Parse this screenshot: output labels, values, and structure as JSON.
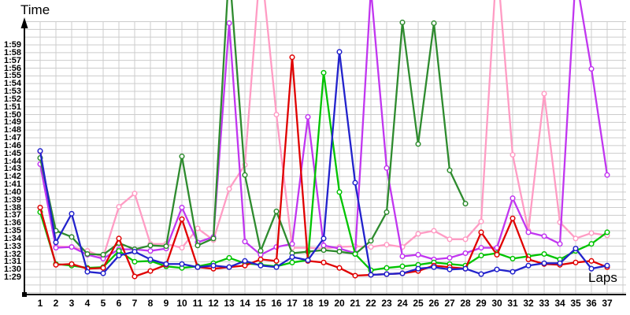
{
  "chart_data": {
    "type": "line",
    "title": "",
    "xlabel": "Laps",
    "ylabel": "Time",
    "x": [
      1,
      2,
      3,
      4,
      5,
      6,
      7,
      8,
      9,
      10,
      11,
      12,
      13,
      14,
      15,
      16,
      17,
      18,
      19,
      20,
      21,
      22,
      23,
      24,
      25,
      26,
      27,
      28,
      29,
      30,
      31,
      32,
      33,
      34,
      35,
      36,
      37
    ],
    "y_axis": {
      "tick_min": "1:29",
      "tick_max": "1:59",
      "unit": "minute:second",
      "note": "values stored as total seconds; 89 = 1:29"
    },
    "grid": true,
    "legend": "none",
    "series": [
      {
        "name": "pink",
        "color": "#ff9cc4",
        "values": [
          105.2,
          93.0,
          92.9,
          92.4,
          91.6,
          98.1,
          99.8,
          93.3,
          93.3,
          92.8,
          95.3,
          93.8,
          100.4,
          103.5,
          130.0,
          110.0,
          92.8,
          92.8,
          92.7,
          92.9,
          93.0,
          92.9,
          93.2,
          92.9,
          94.6,
          95.0,
          93.9,
          93.9,
          96.2,
          130.0,
          104.8,
          95.0,
          112.7,
          96.1,
          94.0,
          94.7,
          94.4
        ]
      },
      {
        "name": "magenta",
        "color": "#c136f0",
        "values": [
          103.6,
          92.8,
          92.9,
          91.9,
          91.4,
          92.6,
          92.6,
          92.4,
          92.7,
          98.0,
          93.5,
          94.2,
          121.8,
          93.6,
          91.9,
          92.9,
          93.3,
          109.7,
          93.1,
          92.7,
          92.1,
          126.2,
          103.1,
          91.7,
          91.9,
          91.3,
          91.5,
          92.1,
          92.8,
          92.8,
          99.2,
          94.8,
          94.3,
          93.3,
          128.0,
          115.9,
          102.2
        ]
      },
      {
        "name": "forest-green",
        "color": "#2e8b2e",
        "values": [
          104.4,
          95.0,
          94.2,
          92.0,
          91.9,
          93.4,
          92.6,
          93.1,
          93.0,
          104.6,
          93.1,
          94.0,
          129.0,
          102.2,
          92.4,
          97.5,
          92.1,
          92.3,
          92.5,
          92.3,
          92.0,
          93.7,
          97.4,
          121.9,
          106.2,
          121.8,
          102.8,
          98.5,
          null,
          null,
          null,
          null,
          null,
          null,
          null,
          null,
          null
        ]
      },
      {
        "name": "lime-green",
        "color": "#00c400",
        "values": [
          97.4,
          90.7,
          90.5,
          90.2,
          90.3,
          92.4,
          91.0,
          91.1,
          90.4,
          90.2,
          90.4,
          90.8,
          91.5,
          90.8,
          90.6,
          90.4,
          90.9,
          91.2,
          115.4,
          100.0,
          92.0,
          89.9,
          90.2,
          90.4,
          90.6,
          90.9,
          90.7,
          90.5,
          91.8,
          92.1,
          91.4,
          91.7,
          92.0,
          91.3,
          92.4,
          93.3,
          94.8
        ]
      },
      {
        "name": "red",
        "color": "#e00000",
        "values": [
          98.0,
          90.6,
          90.7,
          90.1,
          90.2,
          94.0,
          89.1,
          89.8,
          90.6,
          96.5,
          90.3,
          90.1,
          90.3,
          90.5,
          91.3,
          91.1,
          117.4,
          91.1,
          90.9,
          90.2,
          89.2,
          89.3,
          89.4,
          89.5,
          89.8,
          90.5,
          90.3,
          90.1,
          94.8,
          91.9,
          96.6,
          91.3,
          90.7,
          90.6,
          90.9,
          91.1,
          90.3
        ]
      },
      {
        "name": "blue",
        "color": "#2222cc",
        "values": [
          105.3,
          93.5,
          97.2,
          89.7,
          89.5,
          91.8,
          92.3,
          91.3,
          90.7,
          90.7,
          90.3,
          90.5,
          90.3,
          91.1,
          90.5,
          90.3,
          91.6,
          91.2,
          94.0,
          118.1,
          101.2,
          89.3,
          89.4,
          89.5,
          90.1,
          90.3,
          90.0,
          90.1,
          89.4,
          90.0,
          89.7,
          90.5,
          90.8,
          90.8,
          92.7,
          90.1,
          90.5
        ]
      }
    ],
    "y_tick_labels": [
      "1:59",
      "1:58",
      "1:57",
      "1:56",
      "1:55",
      "1:54",
      "1:53",
      "1:52",
      "1:51",
      "1:50",
      "1:49",
      "1:48",
      "1:47",
      "1:46",
      "1:45",
      "1:44",
      "1:43",
      "1:42",
      "1:41",
      "1:40",
      "1:39",
      "1:38",
      "1:37",
      "1:36",
      "1:35",
      "1:34",
      "1:33",
      "1:32",
      "1:31",
      "1:30",
      "1:29"
    ],
    "x_tick_labels": [
      "1",
      "2",
      "3",
      "4",
      "5",
      "6",
      "7",
      "8",
      "9",
      "10",
      "11",
      "12",
      "13",
      "14",
      "15",
      "16",
      "17",
      "18",
      "19",
      "20",
      "21",
      "22",
      "23",
      "24",
      "25",
      "26",
      "27",
      "28",
      "29",
      "30",
      "31",
      "32",
      "33",
      "34",
      "35",
      "36",
      "37"
    ]
  },
  "style": {
    "grid_color": "#cccccc",
    "axis_color": "#000000",
    "background": "#ffffff",
    "marker_fill": "#ffffff"
  }
}
